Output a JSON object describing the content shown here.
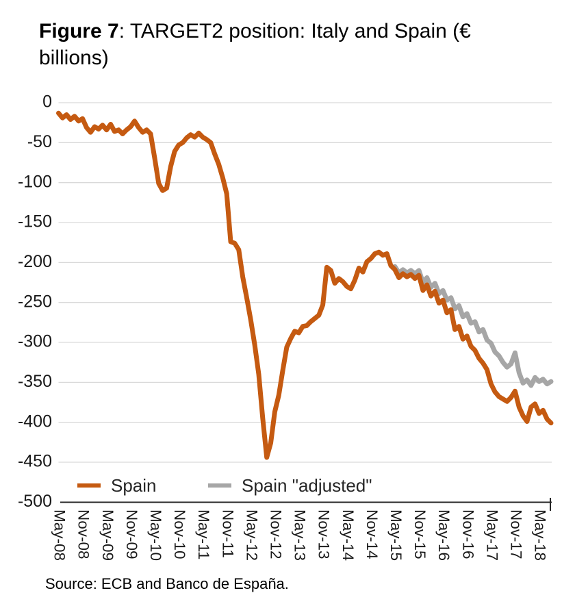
{
  "title": {
    "bold": "Figure 7",
    "line1_rest": ": TARGET2 position: Italy and Spain (€",
    "line2": "billions)"
  },
  "source_note": "Source: ECB and Banco de España.",
  "legend": {
    "items": [
      {
        "label": "Spain",
        "color": "#C55A11"
      },
      {
        "label": "Spain \"adjusted\"",
        "color": "#A6A6A6"
      }
    ],
    "position": "bottom-left-inside-plot"
  },
  "colors": {
    "spain_line": "#C55A11",
    "spain_adjusted_line": "#A6A6A6",
    "gridline": "#D9D9D9",
    "axis": "#262626",
    "text": "#1a1a1a",
    "background": "#FFFFFF"
  },
  "chart_data": {
    "type": "line",
    "title": "TARGET2 position: Italy and Spain (€ billions)",
    "xlabel": "",
    "ylabel": "",
    "ylim": [
      -500,
      0
    ],
    "y_ticks": [
      0,
      -50,
      -100,
      -150,
      -200,
      -250,
      -300,
      -350,
      -400,
      -450,
      -500
    ],
    "grid": "horizontal",
    "legend_position": "bottom-left",
    "x_unit": "month",
    "x_tick_interval_months": 6,
    "x_tick_labels": [
      "May-08",
      "Nov-08",
      "May-09",
      "Nov-09",
      "May-10",
      "Nov-10",
      "May-11",
      "Nov-11",
      "May-12",
      "Nov-12",
      "May-13",
      "Nov-13",
      "May-14",
      "Nov-14",
      "May-15",
      "Nov-15",
      "May-16",
      "Nov-16",
      "May-17",
      "Nov-17",
      "May-18"
    ],
    "series": [
      {
        "name": "Spain",
        "color": "#C55A11",
        "start_month": "2008-05",
        "start_offset_months": 0,
        "values": [
          -13,
          -19,
          -15,
          -21,
          -17,
          -23,
          -20,
          -31,
          -37,
          -30,
          -33,
          -28,
          -34,
          -27,
          -36,
          -34,
          -39,
          -34,
          -30,
          -23,
          -31,
          -37,
          -34,
          -39,
          -69,
          -101,
          -110,
          -107,
          -80,
          -61,
          -53,
          -50,
          -44,
          -40,
          -43,
          -38,
          -43,
          -46,
          -50,
          -64,
          -77,
          -94,
          -114,
          -174,
          -176,
          -184,
          -218,
          -244,
          -272,
          -303,
          -340,
          -395,
          -444,
          -426,
          -387,
          -366,
          -335,
          -306,
          -295,
          -286,
          -288,
          -280,
          -279,
          -274,
          -270,
          -266,
          -253,
          -206,
          -210,
          -226,
          -220,
          -224,
          -230,
          -233,
          -222,
          -207,
          -212,
          -199,
          -195,
          -189,
          -187,
          -191,
          -189,
          -204,
          -209,
          -219,
          -214,
          -218,
          -215,
          -220,
          -216,
          -235,
          -228,
          -242,
          -236,
          -251,
          -247,
          -263,
          -259,
          -284,
          -280,
          -296,
          -292,
          -305,
          -310,
          -320,
          -326,
          -334,
          -352,
          -362,
          -368,
          -371,
          -374,
          -369,
          -361,
          -381,
          -392,
          -399,
          -381,
          -377,
          -389,
          -385,
          -396,
          -401
        ]
      },
      {
        "name": "Spain \"adjusted\"",
        "color": "#A6A6A6",
        "start_month": "2015-05",
        "start_offset_months": 84,
        "values": [
          -205,
          -213,
          -209,
          -213,
          -210,
          -214,
          -210,
          -225,
          -219,
          -231,
          -226,
          -239,
          -235,
          -247,
          -244,
          -258,
          -254,
          -268,
          -264,
          -276,
          -274,
          -287,
          -284,
          -297,
          -301,
          -312,
          -317,
          -325,
          -331,
          -327,
          -313,
          -338,
          -351,
          -347,
          -354,
          -344,
          -349,
          -346,
          -352,
          -349
        ]
      }
    ]
  }
}
